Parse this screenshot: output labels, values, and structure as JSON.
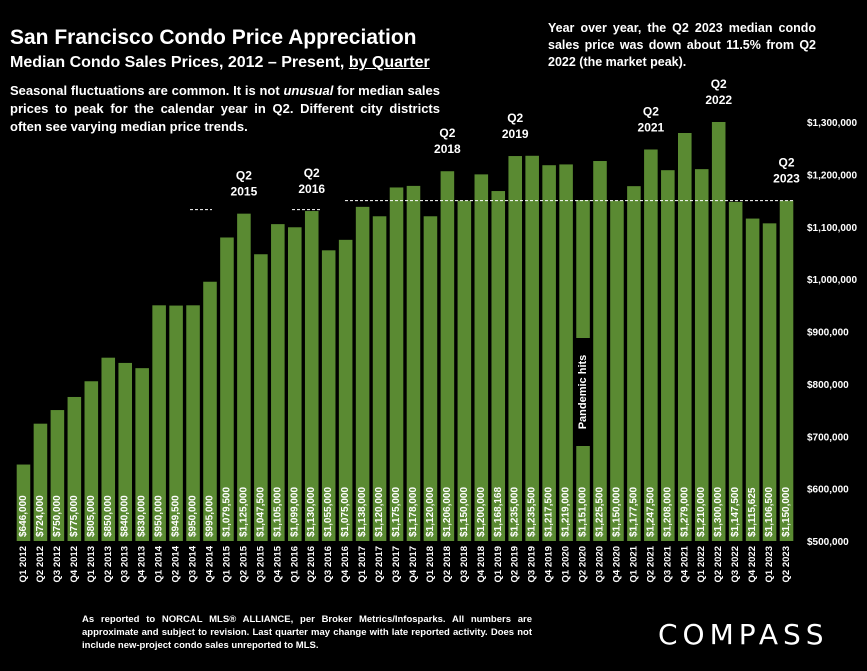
{
  "chart_data": {
    "type": "bar",
    "title": "San Francisco Condo Price Appreciation",
    "subtitle_prefix": "Median Condo Sales Prices, 2012 – Present, ",
    "subtitle_underlined": "by Quarter",
    "note_part1": "Seasonal fluctuations are common. It is not ",
    "note_italic": "unusual",
    "note_part2": " for median sales prices to peak for the calendar year in Q2. Different city districts often see varying median price trends.",
    "yoy_annotation": "Year over year, the Q2 2023 median condo sales price was down about 11.5% from Q2 2022 (the market peak).",
    "ylim": [
      500000,
      1300000
    ],
    "yticks": [
      "$500,000",
      "$600,000",
      "$700,000",
      "$800,000",
      "$900,000",
      "$1,000,000",
      "$1,100,000",
      "$1,200,000",
      "$1,300,000"
    ],
    "categories": [
      "Q1 2012",
      "Q2 2012",
      "Q3 2012",
      "Q4 2012",
      "Q1 2013",
      "Q2 2013",
      "Q3 2013",
      "Q4 2013",
      "Q1 2014",
      "Q2 2014",
      "Q3 2014",
      "Q4 2014",
      "Q1 2015",
      "Q2 2015",
      "Q3 2015",
      "Q4 2015",
      "Q1 2016",
      "Q2 2016",
      "Q3 2016",
      "Q4 2016",
      "Q1 2017",
      "Q2 2017",
      "Q3 2017",
      "Q4 2017",
      "Q1 2018",
      "Q2 2018",
      "Q3 2018",
      "Q4 2018",
      "Q1 2019",
      "Q2 2019",
      "Q3 2019",
      "Q4 2019",
      "Q1 2020",
      "Q2 2020",
      "Q3 2020",
      "Q4 2020",
      "Q1 2021",
      "Q2 2021",
      "Q3 2021",
      "Q4 2021",
      "Q1 2022",
      "Q2 2022",
      "Q3 2022",
      "Q4 2022",
      "Q1 2023",
      "Q2 2023"
    ],
    "values": [
      646000,
      724000,
      750000,
      775000,
      805000,
      850000,
      840000,
      830000,
      950000,
      949500,
      950000,
      995000,
      1079500,
      1125000,
      1047500,
      1105000,
      1099000,
      1130000,
      1055000,
      1075000,
      1138000,
      1120000,
      1175000,
      1178000,
      1120000,
      1206000,
      1150000,
      1200000,
      1168168,
      1235000,
      1235500,
      1217500,
      1219000,
      1151000,
      1225500,
      1150000,
      1177500,
      1247500,
      1208000,
      1279000,
      1210000,
      1300000,
      1147500,
      1115625,
      1106500,
      1150000
    ],
    "value_labels": [
      "$646,000",
      "$724,000",
      "$750,000",
      "$775,000",
      "$805,000",
      "$850,000",
      "$840,000",
      "$830,000",
      "$950,000",
      "$949,500",
      "$950,000",
      "$995,000",
      "$1,079,500",
      "$1,125,000",
      "$1,047,500",
      "$1,105,000",
      "$1,099,000",
      "$1,130,000",
      "$1,055,000",
      "$1,075,000",
      "$1,138,000",
      "$1,120,000",
      "$1,175,000",
      "$1,178,000",
      "$1,120,000",
      "$1,206,000",
      "$1,150,000",
      "$1,200,000",
      "$1,168,168",
      "$1,235,000",
      "$1,235,500",
      "$1,217,500",
      "$1,219,000",
      "$1,151,000",
      "$1,225,500",
      "$1,150,000",
      "$1,177,500",
      "$1,247,500",
      "$1,208,000",
      "$1,279,000",
      "$1,210,000",
      "$1,300,000",
      "$1,147,500",
      "$1,115,625",
      "$1,106,500",
      "$1,150,000"
    ],
    "peak_callouts": [
      {
        "index": 13,
        "line1": "Q2",
        "line2": "2015"
      },
      {
        "index": 17,
        "line1": "Q2",
        "line2": "2016"
      },
      {
        "index": 25,
        "line1": "Q2",
        "line2": "2018"
      },
      {
        "index": 29,
        "line1": "Q2",
        "line2": "2019"
      },
      {
        "index": 37,
        "line1": "Q2",
        "line2": "2021"
      },
      {
        "index": 41,
        "line1": "Q2",
        "line2": "2022"
      },
      {
        "index": 45,
        "line1": "Q2",
        "line2": "2023"
      }
    ],
    "pandemic_label": {
      "index": 33,
      "text": "Pandemic hits"
    },
    "colors": {
      "bar": "#5a8a32",
      "label": "#ffffff",
      "background": "#000000",
      "pandemic_box": "#000000"
    },
    "grid": false
  },
  "footer": "As reported to NORCAL MLS® ALLIANCE, per Broker Metrics/Infosparks. All numbers are approximate and subject to revision. Last quarter may change with late reported activity. Does not include new-project condo sales unreported to MLS.",
  "logo": "COMPASS"
}
